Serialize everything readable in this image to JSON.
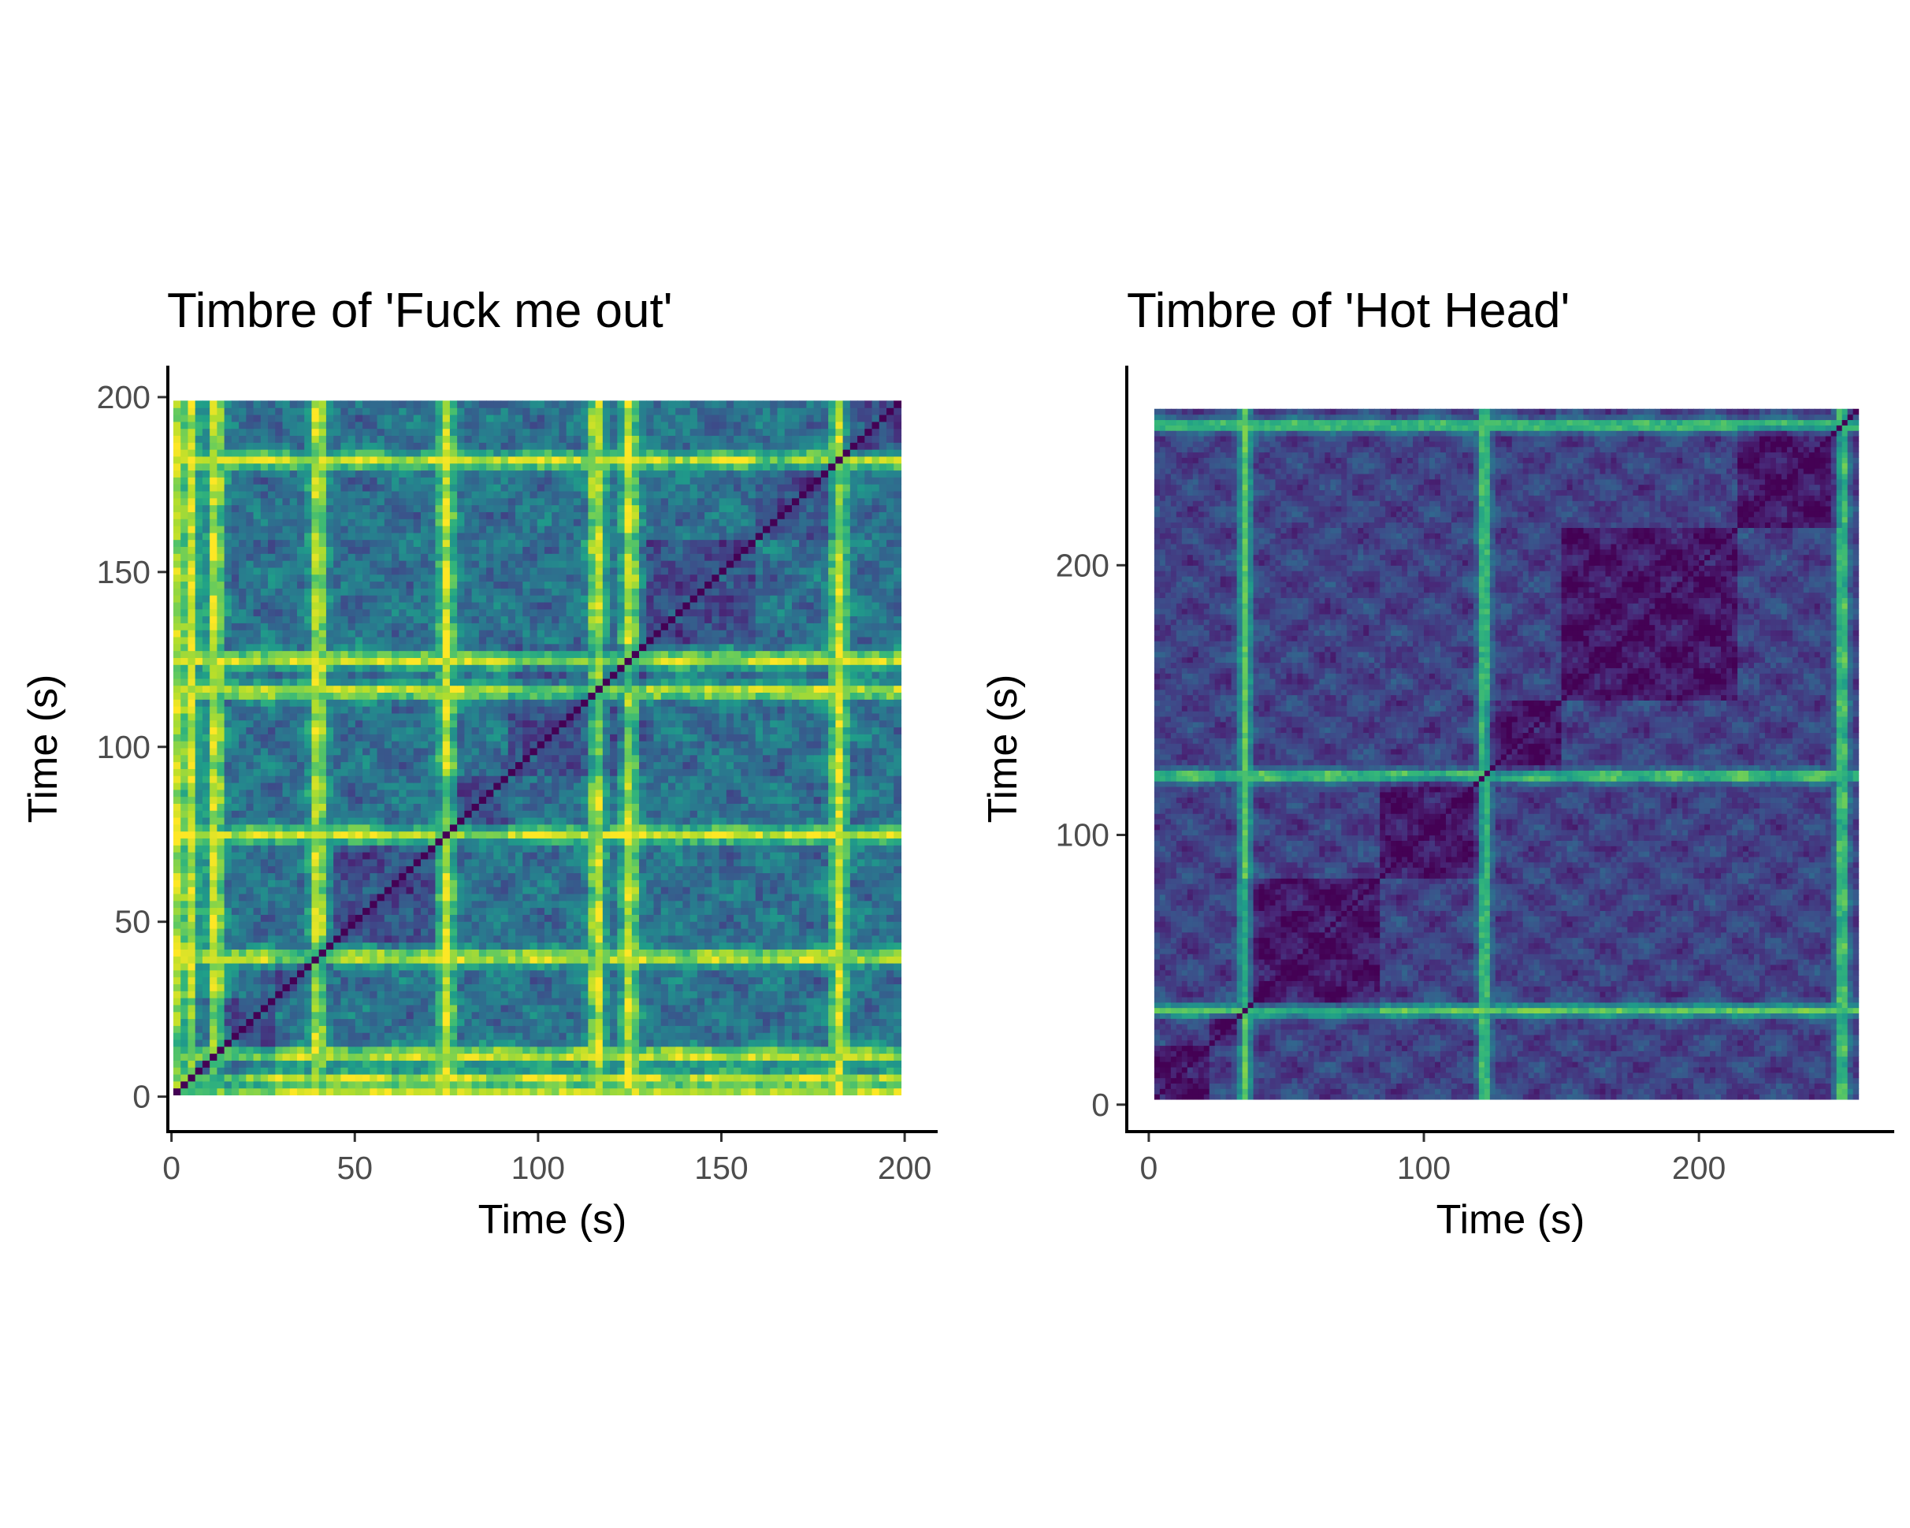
{
  "chart_data": [
    {
      "type": "heatmap",
      "title": "Timbre of 'Fuck me out'",
      "xlabel": "Time (s)",
      "ylabel": "Time (s)",
      "xlim": [
        -1,
        209
      ],
      "ylim": [
        -10,
        209
      ],
      "x_ticks": [
        0,
        50,
        100,
        150,
        200
      ],
      "y_ticks": [
        0,
        50,
        100,
        150,
        200
      ],
      "cell_extent": [
        0.5,
        199
      ],
      "colormap": "viridis",
      "color_low": "#440154",
      "color_high": "#fde725",
      "grid": false,
      "legend": "none",
      "bright_times": [
        2,
        5,
        12,
        40,
        75,
        116,
        125,
        182
      ],
      "block_boundaries": [
        28,
        45,
        72,
        92,
        130,
        160,
        183
      ]
    },
    {
      "type": "heatmap",
      "title": "Timbre of 'Hot Head'",
      "xlabel": "Time (s)",
      "ylabel": "Time (s)",
      "xlim": [
        -8,
        271
      ],
      "ylim": [
        -10,
        274
      ],
      "x_ticks": [
        0,
        100,
        200
      ],
      "y_ticks": [
        0,
        100,
        200
      ],
      "cell_extent": [
        2,
        258
      ],
      "colormap": "viridis",
      "color_low": "#440154",
      "color_high": "#fde725",
      "grid": false,
      "legend": "none",
      "bright_times": [
        35,
        122,
        252
      ],
      "block_boundaries": [
        22,
        35,
        85,
        122,
        150,
        215,
        252
      ]
    }
  ]
}
